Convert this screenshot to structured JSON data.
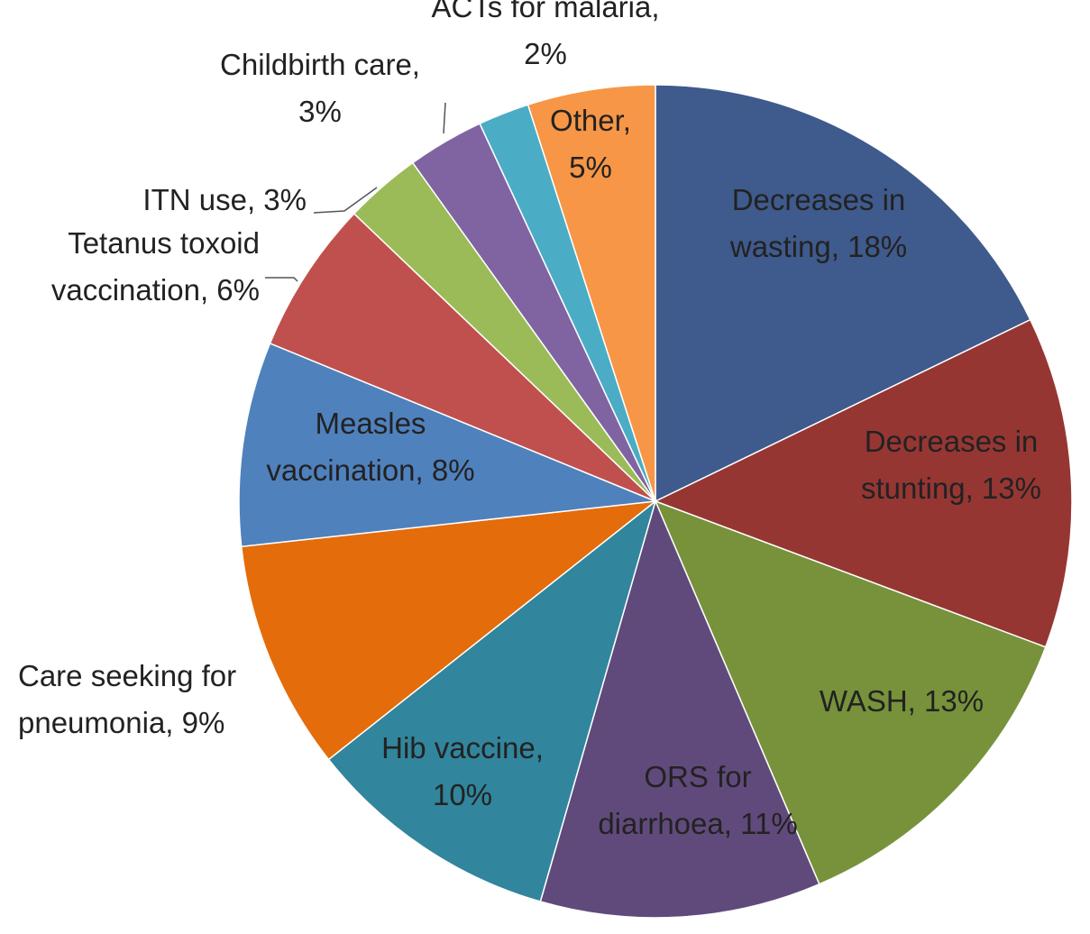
{
  "chart_data": {
    "type": "pie",
    "title": "",
    "start_angle_deg": 0,
    "direction": "clockwise",
    "slices": [
      {
        "name": "Decreases in wasting",
        "value": 18,
        "label_lines": [
          "Decreases in",
          "wasting, 18%"
        ],
        "color": "#3F5A8C"
      },
      {
        "name": "Decreases in stunting",
        "value": 13,
        "label_lines": [
          "Decreases in",
          "stunting, 13%"
        ],
        "color": "#963633"
      },
      {
        "name": "WASH",
        "value": 13,
        "label_lines": [
          "WASH, 13%"
        ],
        "color": "#77923B"
      },
      {
        "name": "ORS for diarrhoea",
        "value": 11,
        "label_lines": [
          "ORS for",
          "diarrhoea, 11%"
        ],
        "color": "#604A7B"
      },
      {
        "name": "Hib vaccine",
        "value": 10,
        "label_lines": [
          "Hib vaccine,",
          "10%"
        ],
        "color": "#31859C"
      },
      {
        "name": "Care seeking for pneumonia",
        "value": 9,
        "label_lines": [
          "Care seeking for",
          "pneumonia, 9%"
        ],
        "color": "#E46C0A"
      },
      {
        "name": "Measles vaccination",
        "value": 8,
        "label_lines": [
          "Measles",
          "vaccination, 8%"
        ],
        "color": "#4F81BD"
      },
      {
        "name": "Tetanus toxoid vaccination",
        "value": 6,
        "label_lines": [
          "Tetanus toxoid",
          "vaccination, 6%"
        ],
        "color": "#C0504D"
      },
      {
        "name": "ITN use",
        "value": 3,
        "label_lines": [
          "ITN use, 3%"
        ],
        "color": "#9BBB59"
      },
      {
        "name": "Childbirth care",
        "value": 3,
        "label_lines": [
          "Childbirth care,",
          "3%"
        ],
        "color": "#8064A2"
      },
      {
        "name": "ACTs for malaria",
        "value": 2,
        "label_lines": [
          "ACTs for malaria,",
          "2%"
        ],
        "color": "#4BACC6"
      },
      {
        "name": "Other",
        "value": 5,
        "label_lines": [
          "Other,",
          "5%"
        ],
        "color": "#F79646"
      }
    ]
  }
}
